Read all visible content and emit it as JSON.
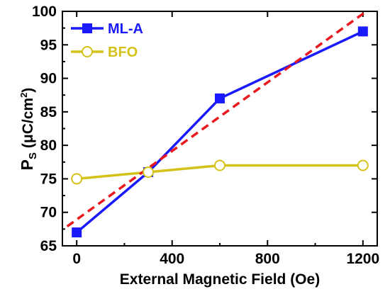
{
  "chart_data": {
    "type": "line",
    "xlabel": "External Magnetic Field (Oe)",
    "ylabel": {
      "main": "P",
      "sub": "S",
      "unit_prefix": " (μC/cm",
      "unit_sup": "2",
      "unit_suffix": ")"
    },
    "xlim": [
      -60,
      1260
    ],
    "ylim": [
      65,
      100
    ],
    "xticks": [
      0,
      400,
      800,
      1200
    ],
    "yticks": [
      65,
      70,
      75,
      80,
      85,
      90,
      95,
      100
    ],
    "legend_position": "top-left",
    "series": [
      {
        "name": "ML-A",
        "color": "#1a1aff",
        "marker": "filled-square",
        "x": [
          0,
          300,
          600,
          1200
        ],
        "y": [
          67,
          76,
          87,
          97
        ]
      },
      {
        "name": "BFO",
        "color": "#d4c21a",
        "marker": "open-circle",
        "x": [
          0,
          300,
          600,
          1200
        ],
        "y": [
          75,
          76,
          77,
          77
        ]
      }
    ],
    "fit_line": {
      "color": "#e8191f",
      "style": "dashed",
      "x": [
        -40,
        1230
      ],
      "y": [
        67.9,
        100.4
      ]
    }
  }
}
